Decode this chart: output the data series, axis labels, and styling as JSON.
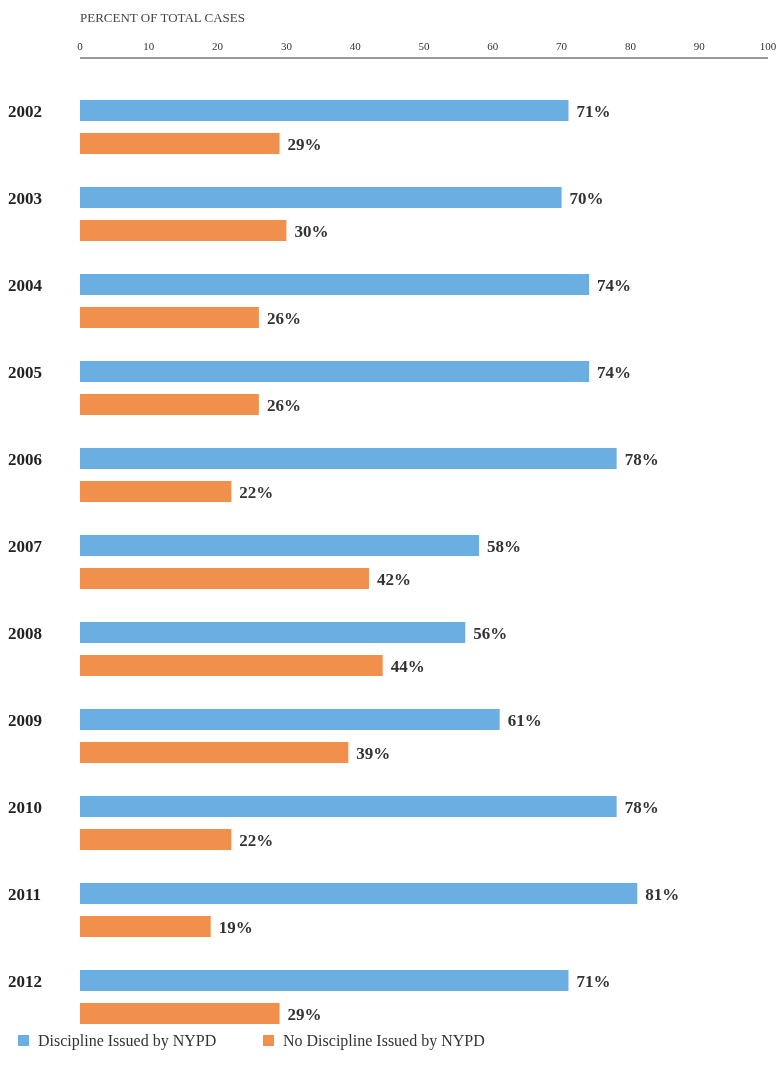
{
  "chart_data": {
    "type": "bar",
    "orientation": "horizontal",
    "xlabel": "PERCENT OF TOTAL CASES",
    "categories": [
      "2002",
      "2003",
      "2004",
      "2005",
      "2006",
      "2007",
      "2008",
      "2009",
      "2010",
      "2011",
      "2012"
    ],
    "series": [
      {
        "name": "Discipline Issued by NYPD",
        "color": "#6aaee2",
        "values": [
          71,
          70,
          74,
          74,
          78,
          58,
          56,
          61,
          78,
          81,
          71
        ],
        "value_labels": [
          "71%",
          "70%",
          "74%",
          "74%",
          "78%",
          "58%",
          "56%",
          "61%",
          "78%",
          "81%",
          "71%"
        ]
      },
      {
        "name": "No Discipline Issued by NYPD",
        "color": "#f0904c",
        "values": [
          29,
          30,
          26,
          26,
          22,
          42,
          44,
          39,
          22,
          19,
          29
        ],
        "value_labels": [
          "29%",
          "30%",
          "26%",
          "26%",
          "22%",
          "42%",
          "44%",
          "39%",
          "22%",
          "19%",
          "29%"
        ]
      }
    ],
    "xlim": [
      0,
      100
    ],
    "xticks": [
      0,
      10,
      20,
      30,
      40,
      50,
      60,
      70,
      80,
      90,
      100
    ],
    "legend": "bottom left",
    "grid": false
  }
}
